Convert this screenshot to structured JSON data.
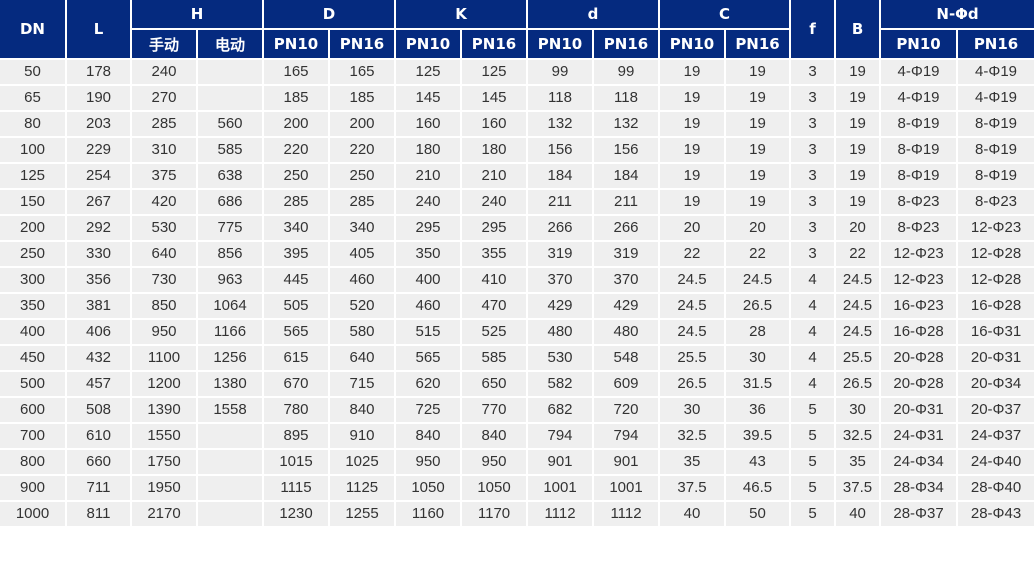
{
  "header": {
    "top": {
      "DN": "DN",
      "L": "L",
      "H": "H",
      "D": "D",
      "K": "K",
      "d": "d",
      "C": "C",
      "f": "f",
      "B": "B",
      "N": "N-Φd"
    },
    "sub": [
      "手动",
      "电动",
      "PN10",
      "PN16",
      "PN10",
      "PN16",
      "PN10",
      "PN16",
      "PN10",
      "PN16",
      "PN10",
      "PN16"
    ]
  },
  "colors": {
    "header_bg": "#052a7f",
    "row_bg": "#efefef",
    "text": "#333333"
  },
  "rows": [
    [
      "50",
      "178",
      "240",
      "",
      "165",
      "165",
      "125",
      "125",
      "99",
      "99",
      "19",
      "19",
      "3",
      "19",
      "4-Φ19",
      "4-Φ19"
    ],
    [
      "65",
      "190",
      "270",
      "",
      "185",
      "185",
      "145",
      "145",
      "118",
      "118",
      "19",
      "19",
      "3",
      "19",
      "4-Φ19",
      "4-Φ19"
    ],
    [
      "80",
      "203",
      "285",
      "560",
      "200",
      "200",
      "160",
      "160",
      "132",
      "132",
      "19",
      "19",
      "3",
      "19",
      "8-Φ19",
      "8-Φ19"
    ],
    [
      "100",
      "229",
      "310",
      "585",
      "220",
      "220",
      "180",
      "180",
      "156",
      "156",
      "19",
      "19",
      "3",
      "19",
      "8-Φ19",
      "8-Φ19"
    ],
    [
      "125",
      "254",
      "375",
      "638",
      "250",
      "250",
      "210",
      "210",
      "184",
      "184",
      "19",
      "19",
      "3",
      "19",
      "8-Φ19",
      "8-Φ19"
    ],
    [
      "150",
      "267",
      "420",
      "686",
      "285",
      "285",
      "240",
      "240",
      "211",
      "211",
      "19",
      "19",
      "3",
      "19",
      "8-Φ23",
      "8-Φ23"
    ],
    [
      "200",
      "292",
      "530",
      "775",
      "340",
      "340",
      "295",
      "295",
      "266",
      "266",
      "20",
      "20",
      "3",
      "20",
      "8-Φ23",
      "12-Φ23"
    ],
    [
      "250",
      "330",
      "640",
      "856",
      "395",
      "405",
      "350",
      "355",
      "319",
      "319",
      "22",
      "22",
      "3",
      "22",
      "12-Φ23",
      "12-Φ28"
    ],
    [
      "300",
      "356",
      "730",
      "963",
      "445",
      "460",
      "400",
      "410",
      "370",
      "370",
      "24.5",
      "24.5",
      "4",
      "24.5",
      "12-Φ23",
      "12-Φ28"
    ],
    [
      "350",
      "381",
      "850",
      "1064",
      "505",
      "520",
      "460",
      "470",
      "429",
      "429",
      "24.5",
      "26.5",
      "4",
      "24.5",
      "16-Φ23",
      "16-Φ28"
    ],
    [
      "400",
      "406",
      "950",
      "1166",
      "565",
      "580",
      "515",
      "525",
      "480",
      "480",
      "24.5",
      "28",
      "4",
      "24.5",
      "16-Φ28",
      "16-Φ31"
    ],
    [
      "450",
      "432",
      "1100",
      "1256",
      "615",
      "640",
      "565",
      "585",
      "530",
      "548",
      "25.5",
      "30",
      "4",
      "25.5",
      "20-Φ28",
      "20-Φ31"
    ],
    [
      "500",
      "457",
      "1200",
      "1380",
      "670",
      "715",
      "620",
      "650",
      "582",
      "609",
      "26.5",
      "31.5",
      "4",
      "26.5",
      "20-Φ28",
      "20-Φ34"
    ],
    [
      "600",
      "508",
      "1390",
      "1558",
      "780",
      "840",
      "725",
      "770",
      "682",
      "720",
      "30",
      "36",
      "5",
      "30",
      "20-Φ31",
      "20-Φ37"
    ],
    [
      "700",
      "610",
      "1550",
      "",
      "895",
      "910",
      "840",
      "840",
      "794",
      "794",
      "32.5",
      "39.5",
      "5",
      "32.5",
      "24-Φ31",
      "24-Φ37"
    ],
    [
      "800",
      "660",
      "1750",
      "",
      "1015",
      "1025",
      "950",
      "950",
      "901",
      "901",
      "35",
      "43",
      "5",
      "35",
      "24-Φ34",
      "24-Φ40"
    ],
    [
      "900",
      "711",
      "1950",
      "",
      "1115",
      "1125",
      "1050",
      "1050",
      "1001",
      "1001",
      "37.5",
      "46.5",
      "5",
      "37.5",
      "28-Φ34",
      "28-Φ40"
    ],
    [
      "1000",
      "811",
      "2170",
      "",
      "1230",
      "1255",
      "1160",
      "1170",
      "1112",
      "1112",
      "40",
      "50",
      "5",
      "40",
      "28-Φ37",
      "28-Φ43"
    ]
  ]
}
